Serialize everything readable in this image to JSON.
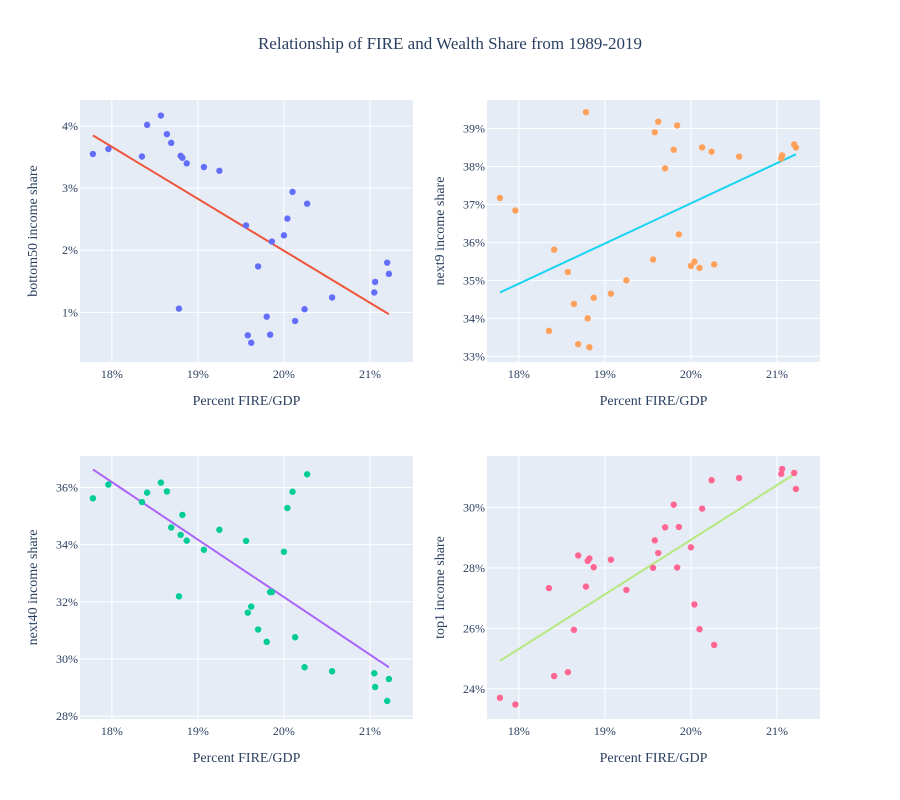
{
  "title": "Relationship of FIRE and Wealth Share from 1989-2019",
  "colors": {
    "plot_bg": "#e5ecf6",
    "grid": "#ffffff",
    "text": "#2a3f5f"
  },
  "chart_data": [
    {
      "type": "scatter",
      "xlabel": "Percent FIRE/GDP",
      "ylabel": "bottom50 income share",
      "x_ticks": [
        "18%",
        "19%",
        "20%",
        "21%"
      ],
      "y_ticks": [
        "1%",
        "2%",
        "3%",
        "4%"
      ],
      "xlim": [
        17.63,
        21.5
      ],
      "ylim": [
        0.2,
        4.42
      ],
      "tick_x": [
        18,
        19,
        20,
        21
      ],
      "tick_y": [
        1,
        2,
        3,
        4
      ],
      "point_color": "#636efa",
      "line_color": "#ef553b",
      "trend": {
        "x": [
          17.78,
          21.22
        ],
        "y": [
          3.85,
          0.97
        ]
      },
      "points": [
        {
          "x": 17.78,
          "y": 3.55
        },
        {
          "x": 17.96,
          "y": 3.63
        },
        {
          "x": 18.35,
          "y": 3.51
        },
        {
          "x": 18.41,
          "y": 4.02
        },
        {
          "x": 18.57,
          "y": 4.17
        },
        {
          "x": 18.64,
          "y": 3.87
        },
        {
          "x": 18.69,
          "y": 3.73
        },
        {
          "x": 18.78,
          "y": 1.06
        },
        {
          "x": 18.8,
          "y": 3.52
        },
        {
          "x": 18.82,
          "y": 3.49
        },
        {
          "x": 18.87,
          "y": 3.4
        },
        {
          "x": 19.07,
          "y": 3.34
        },
        {
          "x": 19.25,
          "y": 3.28
        },
        {
          "x": 19.56,
          "y": 2.4
        },
        {
          "x": 19.58,
          "y": 0.63
        },
        {
          "x": 19.62,
          "y": 0.51
        },
        {
          "x": 19.7,
          "y": 1.74
        },
        {
          "x": 19.8,
          "y": 0.93
        },
        {
          "x": 19.84,
          "y": 0.64
        },
        {
          "x": 19.86,
          "y": 2.14
        },
        {
          "x": 20.0,
          "y": 2.24
        },
        {
          "x": 20.04,
          "y": 2.51
        },
        {
          "x": 20.1,
          "y": 2.94
        },
        {
          "x": 20.13,
          "y": 0.86
        },
        {
          "x": 20.24,
          "y": 1.05
        },
        {
          "x": 20.27,
          "y": 2.75
        },
        {
          "x": 20.56,
          "y": 1.24
        },
        {
          "x": 21.05,
          "y": 1.32
        },
        {
          "x": 21.06,
          "y": 1.49
        },
        {
          "x": 21.2,
          "y": 1.8
        },
        {
          "x": 21.22,
          "y": 1.62
        }
      ]
    },
    {
      "type": "scatter",
      "xlabel": "Percent FIRE/GDP",
      "ylabel": "next9 income share",
      "x_ticks": [
        "18%",
        "19%",
        "20%",
        "21%"
      ],
      "y_ticks": [
        "33%",
        "34%",
        "35%",
        "36%",
        "37%",
        "38%",
        "39%"
      ],
      "xlim": [
        17.63,
        21.5
      ],
      "ylim": [
        32.85,
        39.75
      ],
      "tick_x": [
        18,
        19,
        20,
        21
      ],
      "tick_y": [
        33,
        34,
        35,
        36,
        37,
        38,
        39
      ],
      "point_color": "#ffa15a",
      "line_color": "#19d3f3",
      "trend": {
        "x": [
          17.78,
          21.22
        ],
        "y": [
          34.68,
          38.32
        ]
      },
      "points": [
        {
          "x": 17.78,
          "y": 37.17
        },
        {
          "x": 17.96,
          "y": 36.84
        },
        {
          "x": 18.35,
          "y": 33.67
        },
        {
          "x": 18.41,
          "y": 35.81
        },
        {
          "x": 18.57,
          "y": 35.22
        },
        {
          "x": 18.64,
          "y": 34.38
        },
        {
          "x": 18.69,
          "y": 33.32
        },
        {
          "x": 18.78,
          "y": 39.43
        },
        {
          "x": 18.8,
          "y": 34.0
        },
        {
          "x": 18.82,
          "y": 33.24
        },
        {
          "x": 18.87,
          "y": 34.54
        },
        {
          "x": 19.07,
          "y": 34.65
        },
        {
          "x": 19.25,
          "y": 35.0
        },
        {
          "x": 19.56,
          "y": 35.55
        },
        {
          "x": 19.58,
          "y": 38.9
        },
        {
          "x": 19.62,
          "y": 39.18
        },
        {
          "x": 19.7,
          "y": 37.95
        },
        {
          "x": 19.8,
          "y": 38.44
        },
        {
          "x": 19.84,
          "y": 39.08
        },
        {
          "x": 19.86,
          "y": 36.21
        },
        {
          "x": 20.0,
          "y": 35.38
        },
        {
          "x": 20.04,
          "y": 35.49
        },
        {
          "x": 20.1,
          "y": 35.33
        },
        {
          "x": 20.13,
          "y": 38.5
        },
        {
          "x": 20.24,
          "y": 38.39
        },
        {
          "x": 20.27,
          "y": 35.42
        },
        {
          "x": 20.56,
          "y": 38.26
        },
        {
          "x": 21.05,
          "y": 38.21
        },
        {
          "x": 21.06,
          "y": 38.29
        },
        {
          "x": 21.2,
          "y": 38.58
        },
        {
          "x": 21.22,
          "y": 38.5
        }
      ]
    },
    {
      "type": "scatter",
      "xlabel": "Percent FIRE/GDP",
      "ylabel": "next40 income share",
      "x_ticks": [
        "18%",
        "19%",
        "20%",
        "21%"
      ],
      "y_ticks": [
        "28%",
        "30%",
        "32%",
        "34%",
        "36%"
      ],
      "xlim": [
        17.63,
        21.5
      ],
      "ylim": [
        27.9,
        37.1
      ],
      "tick_x": [
        18,
        19,
        20,
        21
      ],
      "tick_y": [
        28,
        30,
        32,
        34,
        36
      ],
      "point_color": "#00cc96",
      "line_color": "#ab63fa",
      "trend": {
        "x": [
          17.78,
          21.22
        ],
        "y": [
          36.63,
          29.71
        ]
      },
      "points": [
        {
          "x": 17.78,
          "y": 35.62
        },
        {
          "x": 17.96,
          "y": 36.1
        },
        {
          "x": 18.35,
          "y": 35.49
        },
        {
          "x": 18.41,
          "y": 35.82
        },
        {
          "x": 18.57,
          "y": 36.17
        },
        {
          "x": 18.64,
          "y": 35.86
        },
        {
          "x": 18.69,
          "y": 34.6
        },
        {
          "x": 18.78,
          "y": 32.19
        },
        {
          "x": 18.8,
          "y": 34.34
        },
        {
          "x": 18.82,
          "y": 35.04
        },
        {
          "x": 18.87,
          "y": 34.14
        },
        {
          "x": 19.07,
          "y": 33.82
        },
        {
          "x": 19.25,
          "y": 34.52
        },
        {
          "x": 19.56,
          "y": 34.13
        },
        {
          "x": 19.58,
          "y": 31.62
        },
        {
          "x": 19.62,
          "y": 31.83
        },
        {
          "x": 19.7,
          "y": 31.03
        },
        {
          "x": 19.8,
          "y": 30.6
        },
        {
          "x": 19.84,
          "y": 32.34
        },
        {
          "x": 19.86,
          "y": 32.34
        },
        {
          "x": 20.0,
          "y": 33.75
        },
        {
          "x": 20.04,
          "y": 35.28
        },
        {
          "x": 20.1,
          "y": 35.85
        },
        {
          "x": 20.13,
          "y": 30.76
        },
        {
          "x": 20.24,
          "y": 29.71
        },
        {
          "x": 20.27,
          "y": 36.46
        },
        {
          "x": 20.56,
          "y": 29.57
        },
        {
          "x": 21.05,
          "y": 29.5
        },
        {
          "x": 21.06,
          "y": 29.02
        },
        {
          "x": 21.2,
          "y": 28.53
        },
        {
          "x": 21.22,
          "y": 29.3
        }
      ]
    },
    {
      "type": "scatter",
      "xlabel": "Percent FIRE/GDP",
      "ylabel": "top1 income share",
      "x_ticks": [
        "18%",
        "19%",
        "20%",
        "21%"
      ],
      "y_ticks": [
        "24%",
        "26%",
        "28%",
        "30%"
      ],
      "xlim": [
        17.63,
        21.5
      ],
      "ylim": [
        23.0,
        31.7
      ],
      "tick_x": [
        18,
        19,
        20,
        21
      ],
      "tick_y": [
        24,
        26,
        28,
        30
      ],
      "point_color": "#ff6692",
      "line_color": "#b6e880",
      "trend": {
        "x": [
          17.78,
          21.22
        ],
        "y": [
          24.92,
          31.13
        ]
      },
      "points": [
        {
          "x": 17.78,
          "y": 23.7
        },
        {
          "x": 17.96,
          "y": 23.48
        },
        {
          "x": 18.35,
          "y": 27.33
        },
        {
          "x": 18.41,
          "y": 24.42
        },
        {
          "x": 18.57,
          "y": 24.55
        },
        {
          "x": 18.64,
          "y": 25.95
        },
        {
          "x": 18.69,
          "y": 28.41
        },
        {
          "x": 18.78,
          "y": 27.38
        },
        {
          "x": 18.8,
          "y": 28.23
        },
        {
          "x": 18.82,
          "y": 28.31
        },
        {
          "x": 18.87,
          "y": 28.02
        },
        {
          "x": 19.07,
          "y": 28.27
        },
        {
          "x": 19.25,
          "y": 27.27
        },
        {
          "x": 19.56,
          "y": 28.0
        },
        {
          "x": 19.58,
          "y": 28.91
        },
        {
          "x": 19.62,
          "y": 28.49
        },
        {
          "x": 19.7,
          "y": 29.34
        },
        {
          "x": 19.8,
          "y": 30.09
        },
        {
          "x": 19.84,
          "y": 28.01
        },
        {
          "x": 19.86,
          "y": 29.35
        },
        {
          "x": 20.0,
          "y": 28.68
        },
        {
          "x": 20.04,
          "y": 26.79
        },
        {
          "x": 20.1,
          "y": 25.97
        },
        {
          "x": 20.13,
          "y": 29.96
        },
        {
          "x": 20.24,
          "y": 30.9
        },
        {
          "x": 20.27,
          "y": 25.45
        },
        {
          "x": 20.56,
          "y": 30.97
        },
        {
          "x": 21.05,
          "y": 31.11
        },
        {
          "x": 21.06,
          "y": 31.27
        },
        {
          "x": 21.2,
          "y": 31.14
        },
        {
          "x": 21.22,
          "y": 30.61
        }
      ]
    }
  ]
}
